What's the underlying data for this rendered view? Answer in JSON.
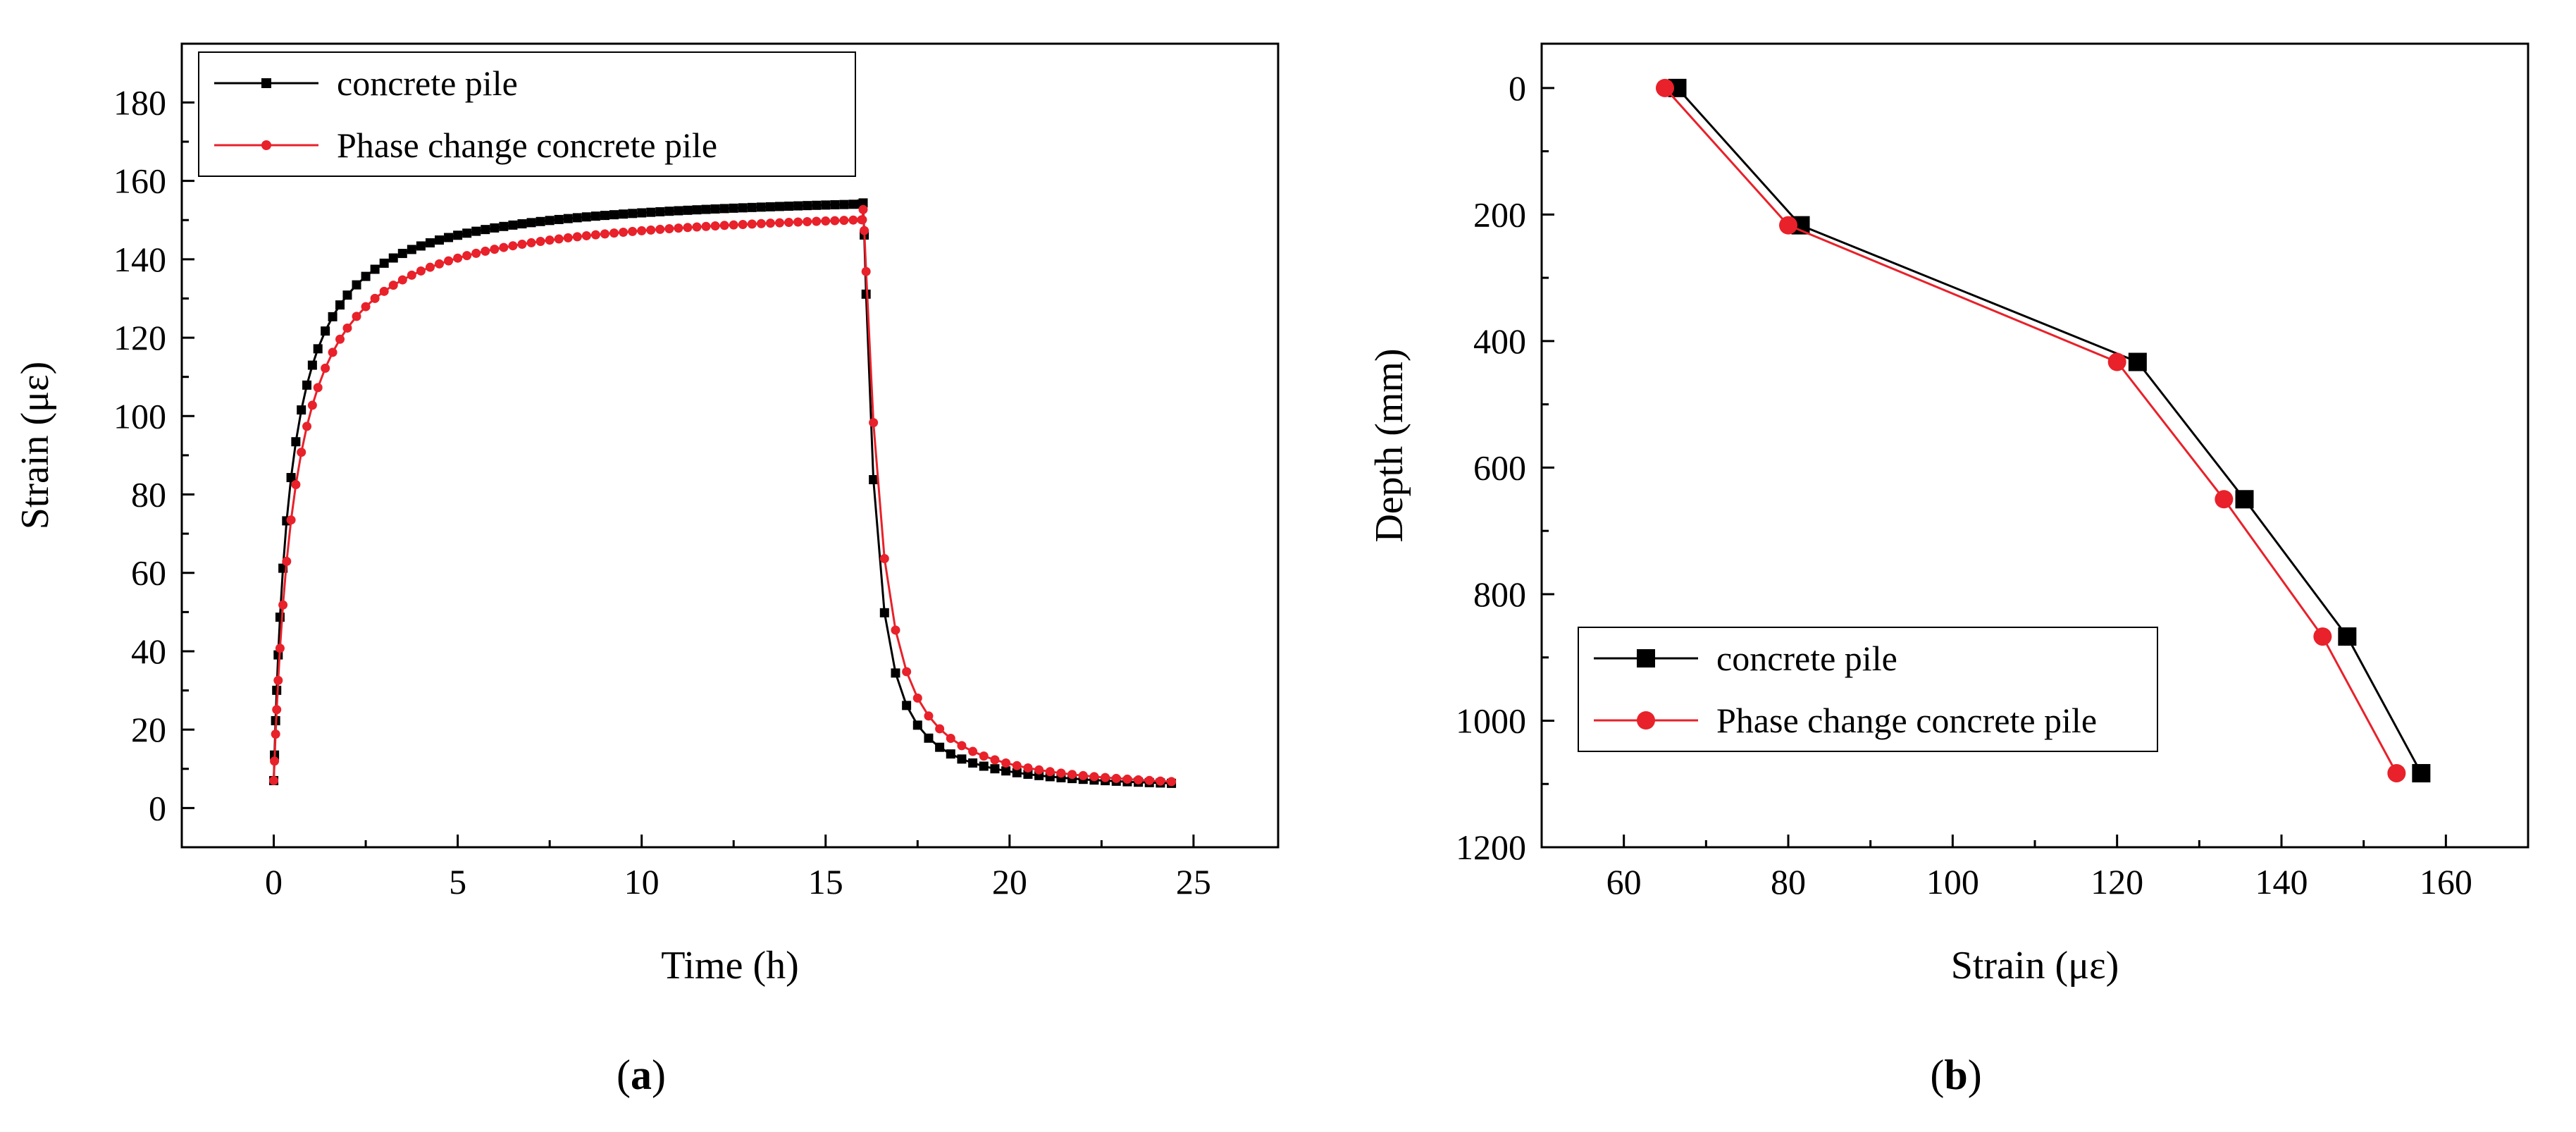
{
  "chart_data": [
    {
      "type": "line",
      "panel_label": "a",
      "xlabel": "Time (h)",
      "ylabel": "Strain (με)",
      "xlim": [
        -2.5,
        27.3
      ],
      "ylim": [
        -10,
        195
      ],
      "xticks": [
        0,
        5,
        10,
        15,
        20,
        25
      ],
      "yticks": [
        0,
        20,
        40,
        60,
        80,
        100,
        120,
        140,
        160,
        180
      ],
      "legend_position": "top-left",
      "series": [
        {
          "name": "concrete pile",
          "color": "#000000",
          "marker": "square",
          "model": {
            "heat_end": 16.0,
            "peak": 158,
            "tau_heat": 0.85,
            "cool_b": 0.9,
            "final": 4.5
          }
        },
        {
          "name": "Phase change concrete pile",
          "color": "#e8212a",
          "marker": "circle",
          "model": {
            "heat_end": 16.0,
            "peak": 155,
            "tau_heat": 1.1,
            "cool_b": 1.25,
            "final": 4.0
          }
        }
      ]
    },
    {
      "type": "line",
      "panel_label": "b",
      "xlabel": "Strain (με)",
      "ylabel": "Depth (mm)",
      "xlim": [
        50,
        170
      ],
      "ylim": [
        1200,
        -70
      ],
      "y_inverted": true,
      "xticks": [
        60,
        80,
        100,
        120,
        140,
        160
      ],
      "yticks": [
        0,
        200,
        400,
        600,
        800,
        1000,
        1200
      ],
      "legend_position": "bottom-left",
      "series": [
        {
          "name": "concrete pile",
          "color": "#000000",
          "marker": "square",
          "x": [
            66.5,
            81.5,
            122.5,
            135.5,
            148.0,
            157.0
          ],
          "y": [
            0,
            217,
            433,
            650,
            867,
            1083
          ]
        },
        {
          "name": "Phase change concrete pile",
          "color": "#e8212a",
          "marker": "circle",
          "x": [
            65.0,
            80.0,
            120.0,
            133.0,
            145.0,
            154.0
          ],
          "y": [
            0,
            217,
            433,
            650,
            867,
            1083
          ]
        }
      ]
    }
  ],
  "captions": {
    "a": {
      "open": "(",
      "letter": "a",
      "close": ")"
    },
    "b": {
      "open": "(",
      "letter": "b",
      "close": ")"
    }
  }
}
